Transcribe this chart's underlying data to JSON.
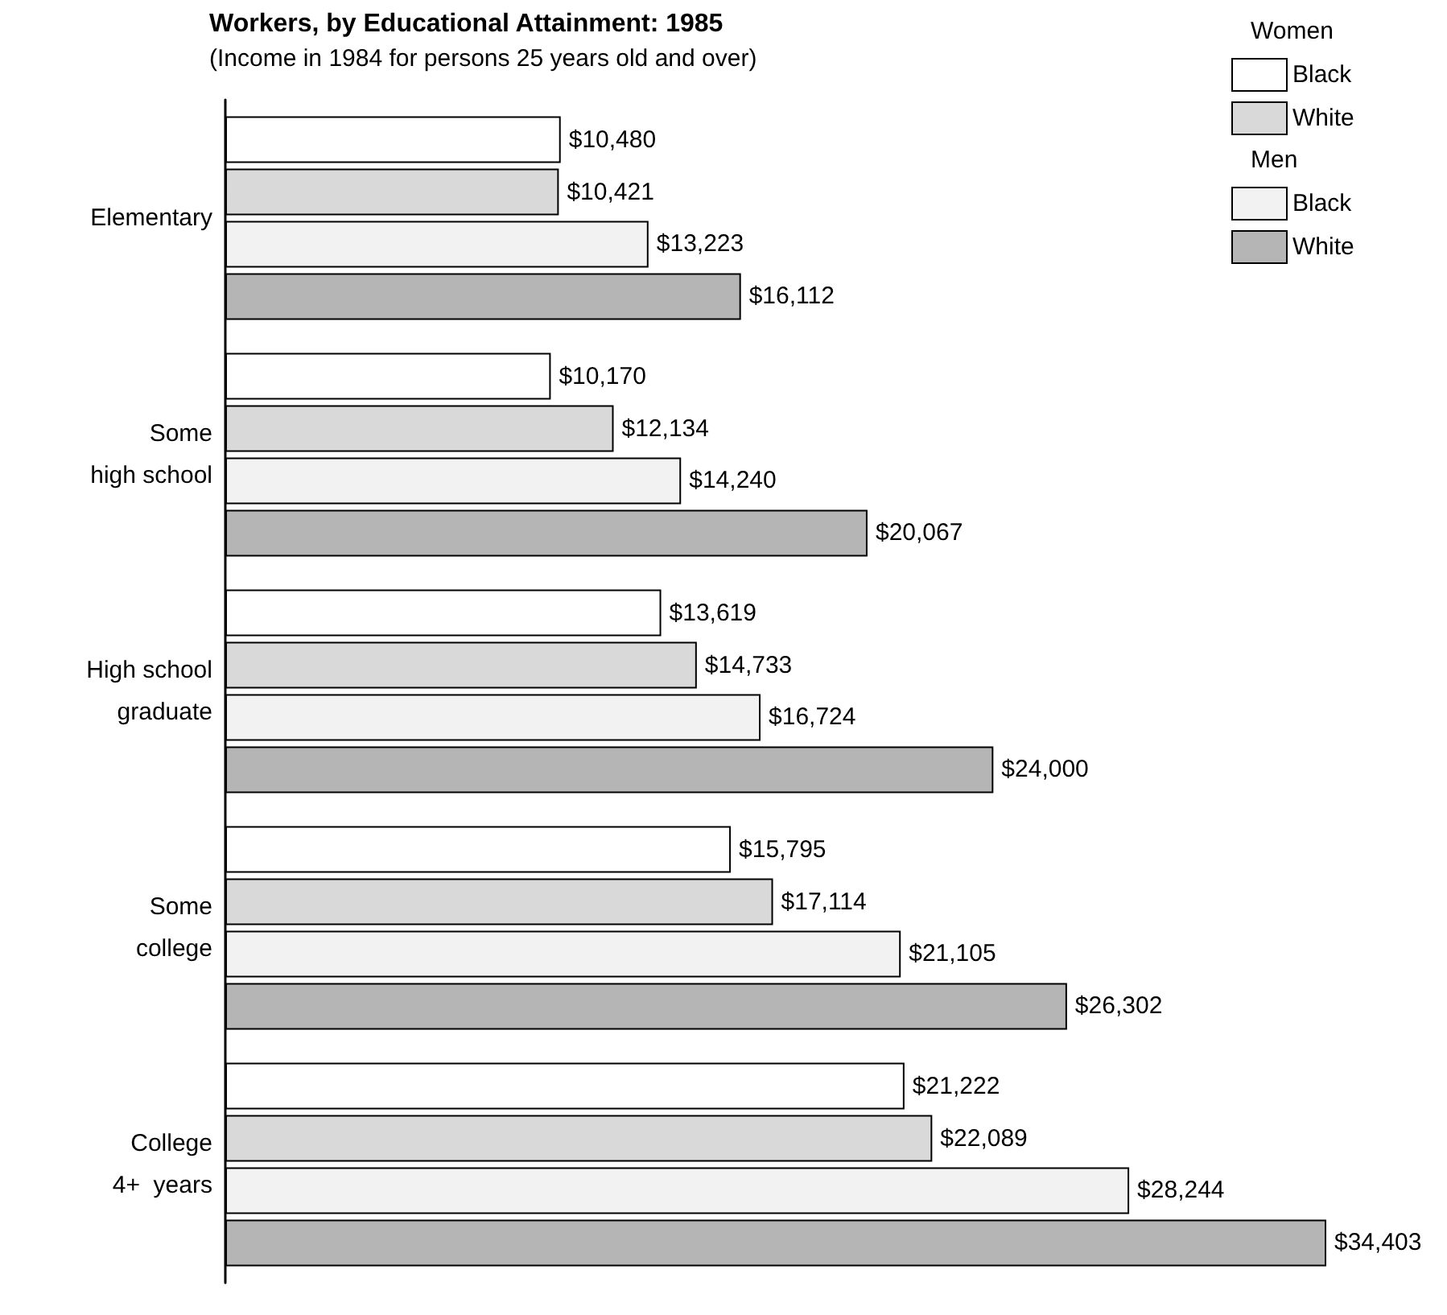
{
  "chart_data": {
    "type": "bar",
    "orientation": "horizontal",
    "title": "Workers, by Educational Attainment: 1985",
    "subtitle": "(Income in 1984 for persons 25 years old and over)",
    "categories": [
      "Elementary",
      "Some\nhigh school",
      "High school\ngraduate",
      "Some\ncollege",
      "College\n4+  years"
    ],
    "series": [
      {
        "name": "Black",
        "color": "#ffffff",
        "values": [
          10480,
          10170,
          13619,
          15795,
          21222
        ],
        "value_labels": [
          "$10,480",
          "$10,170",
          "$13,619",
          "$15,795",
          "$21,222"
        ]
      },
      {
        "name": "White",
        "color": "#d9d9d9",
        "values": [
          10421,
          12134,
          14733,
          17114,
          22089
        ],
        "value_labels": [
          "$10,421",
          "$12,134",
          "$14,733",
          "$17,114",
          "$22,089"
        ]
      },
      {
        "name": "Black",
        "color": "#f2f2f2",
        "values": [
          13223,
          14240,
          16724,
          21105,
          28244
        ],
        "value_labels": [
          "$13,223",
          "$14,240",
          "$16,724",
          "$21,105",
          "$28,244"
        ]
      },
      {
        "name": "White",
        "color": "#b5b5b5",
        "values": [
          16112,
          20067,
          24000,
          26302,
          34403
        ],
        "value_labels": [
          "$16,112",
          "$20,067",
          "$24,000",
          "$26,302",
          "$34,403"
        ]
      }
    ],
    "annotations": [
      "Women",
      "Men"
    ],
    "legend": "top right"
  }
}
